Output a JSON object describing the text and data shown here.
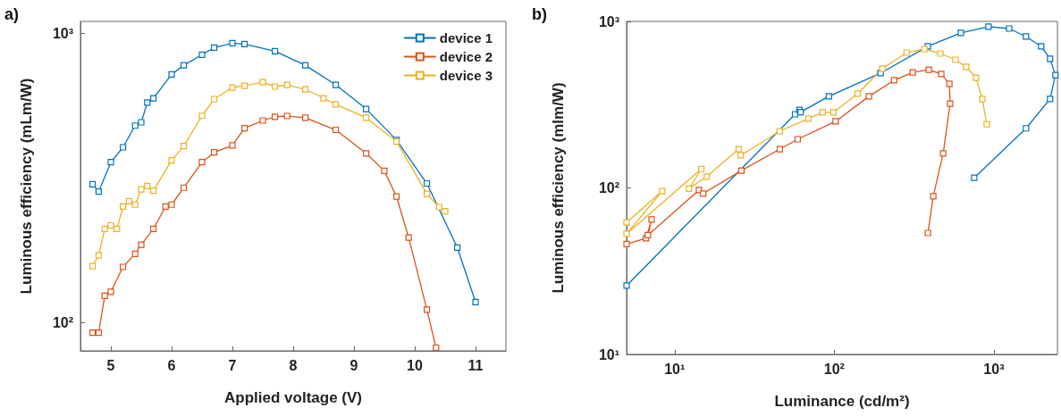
{
  "chart_data": [
    {
      "type": "line",
      "title": "a)",
      "xlabel": "Applied voltage (V)",
      "ylabel": "Luminous efficiency (mLm/W)",
      "log": "y",
      "grid": false,
      "legend": "top right",
      "marker": "square",
      "line_style": "solid",
      "xlim": [
        4.5,
        11.5
      ],
      "xticks": [
        5,
        6,
        7,
        8,
        9,
        10,
        11
      ],
      "ylim": [
        80,
        1100
      ],
      "yticks": [
        {
          "value": 100,
          "label": "10²"
        },
        {
          "value": 1000,
          "label": "10³"
        }
      ],
      "series": [
        {
          "name": "device 1",
          "color": "#0072bd",
          "x": [
            4.7,
            4.8,
            5.0,
            5.2,
            5.4,
            5.5,
            5.6,
            5.7,
            6.0,
            6.2,
            6.5,
            6.7,
            7.0,
            7.2,
            7.7,
            8.2,
            8.7,
            9.2,
            9.7,
            10.2,
            10.7,
            11.0
          ],
          "values": [
            301,
            284,
            359,
            404,
            480,
            493,
            577,
            597,
            722,
            776,
            844,
            893,
            925,
            919,
            868,
            776,
            664,
            548,
            428,
            303,
            182,
            118
          ]
        },
        {
          "name": "device 2",
          "color": "#d95319",
          "x": [
            4.7,
            4.8,
            4.9,
            5.0,
            5.2,
            5.4,
            5.5,
            5.7,
            5.9,
            6.0,
            6.2,
            6.5,
            6.7,
            7.0,
            7.2,
            7.5,
            7.7,
            7.9,
            8.2,
            8.7,
            9.2,
            9.5,
            9.7,
            9.9,
            10.2,
            10.35
          ],
          "values": [
            92.5,
            92.5,
            124,
            128,
            156,
            173,
            186,
            211,
            252,
            256,
            293,
            359,
            388,
            410,
            470,
            500,
            515,
            518,
            511,
            464,
            385,
            335,
            273,
            197,
            111,
            82
          ]
        },
        {
          "name": "device 3",
          "color": "#edb120",
          "x": [
            4.7,
            4.8,
            4.9,
            5.0,
            5.1,
            5.2,
            5.3,
            5.4,
            5.5,
            5.6,
            5.7,
            6.0,
            6.2,
            6.5,
            6.7,
            7.0,
            7.2,
            7.5,
            7.7,
            7.9,
            8.2,
            8.5,
            8.7,
            9.2,
            9.7,
            10.2,
            10.4,
            10.5
          ],
          "values": [
            157,
            171,
            211,
            217,
            211,
            252,
            263,
            256,
            289,
            297,
            286,
            364,
            408,
            519,
            593,
            650,
            659,
            678,
            655,
            664,
            641,
            597,
            569,
            511,
            423,
            279,
            251,
            243
          ]
        }
      ]
    },
    {
      "type": "line",
      "title": "b)",
      "xlabel": "Luminance (cd/m²)",
      "ylabel": "Luminous efficiency (mlm/W)",
      "log": "xy",
      "grid": false,
      "marker": "square",
      "line_style": "solid",
      "xlim": [
        5,
        2500
      ],
      "xticks": [
        {
          "value": 10,
          "label": "10¹"
        },
        {
          "value": 100,
          "label": "10²"
        },
        {
          "value": 1000,
          "label": "10³"
        }
      ],
      "ylim": [
        10,
        1000
      ],
      "yticks": [
        {
          "value": 10,
          "label": "10¹"
        },
        {
          "value": 100,
          "label": "10²"
        },
        {
          "value": 1000,
          "label": "10³"
        }
      ],
      "series": [
        {
          "color": "#0072bd",
          "x": [
            5,
            56.8,
            60.5,
            61.5,
            92.5,
            195,
            386,
            621,
            925,
            1245,
            1589,
            1977,
            2249,
            2428,
            2249,
            1589,
            753
          ],
          "values": [
            25.9,
            277,
            294,
            285,
            355,
            489,
            708,
            852,
            929,
            906,
            811,
            708,
            596,
            476,
            342,
            228,
            115
          ]
        },
        {
          "color": "#d95319",
          "x": [
            5,
            6.62,
            7.17,
            6.8,
            14.2,
            15.1,
            26.2,
            45.6,
            59,
            102,
            165,
            237,
            310,
            391,
            468,
            526,
            532,
            481,
            417,
            386
          ],
          "values": [
            46,
            49.8,
            64.6,
            52,
            97,
            92.5,
            127,
            171,
            196,
            251,
            355,
            443,
            494,
            513,
            483,
            422,
            321,
            161,
            89,
            53.6
          ]
        },
        {
          "color": "#edb120",
          "x": [
            5,
            8.36,
            5,
            14.7,
            12.3,
            15.9,
            25.2,
            25.9,
            45.6,
            68.9,
            84.5,
            98.7,
            140,
            200,
            284,
            367,
            462,
            575,
            671,
            773,
            846,
            902
          ],
          "values": [
            62,
            95.7,
            53,
            130,
            99,
            117,
            171,
            157,
            219,
            261,
            284,
            284,
            368,
            520,
            649,
            682,
            641,
            588,
            533,
            459,
            342,
            241
          ]
        }
      ]
    }
  ]
}
